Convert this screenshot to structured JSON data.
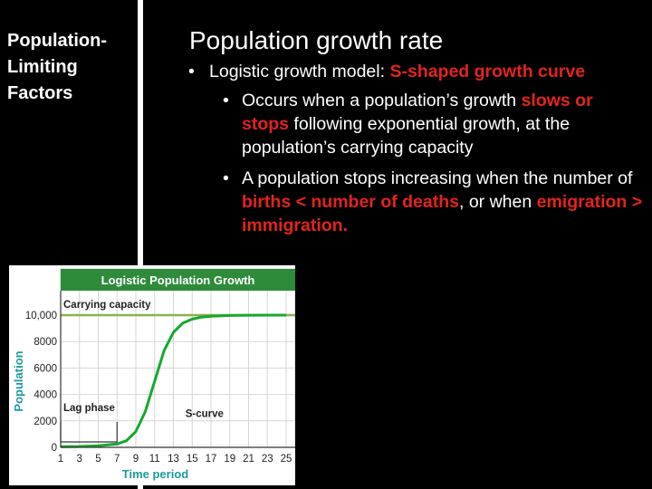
{
  "sidebar": {
    "title_lines": [
      "Population-",
      "Limiting",
      "Factors"
    ]
  },
  "main": {
    "title": "Population growth rate",
    "bullet1": {
      "bullet": "•",
      "prefix": "Logistic growth model: ",
      "highlight": "S-shaped growth curve"
    },
    "bullet2": {
      "bullet": "•",
      "prefix": "Occurs when a population’s growth ",
      "highlight": "slows or stops",
      "suffix": " following exponential growth, at the population’s carrying capacity"
    },
    "bullet3": {
      "bullet": "•",
      "prefix": "A population stops increasing when the number of ",
      "highlight1": "births < number of deaths",
      "middle": ", or when ",
      "highlight2": "emigration > immigration."
    }
  },
  "colors": {
    "highlight": "#e2241d",
    "header_green": "#2e8b3a",
    "capacity_line": "#8ab04a",
    "curve": "#16a82d",
    "axis_label": "#1a9b9e"
  },
  "chart_data": {
    "type": "line",
    "title": "Logistic Population Growth",
    "xlabel": "Time period",
    "ylabel": "Population",
    "xlim": [
      1,
      25
    ],
    "ylim": [
      0,
      10000
    ],
    "x_ticks": [
      "1",
      "3",
      "5",
      "7",
      "9",
      "11",
      "13",
      "15",
      "17",
      "19",
      "21",
      "23",
      "25"
    ],
    "y_ticks": [
      "0",
      "2000",
      "4000",
      "6000",
      "8000",
      "10,000"
    ],
    "grid": true,
    "carrying_capacity": 10000,
    "annotations": {
      "capacity": "Carrying capacity",
      "s_curve": "S-curve",
      "lag": "Lag phase"
    },
    "lag_phase_range": [
      1,
      7
    ],
    "series": [
      {
        "x": [
          1,
          3,
          5,
          7,
          8,
          9,
          10,
          11,
          12,
          13,
          14,
          15,
          16,
          17,
          19,
          21,
          23,
          25
        ],
        "y": [
          50,
          70,
          120,
          250,
          500,
          1200,
          2700,
          5000,
          7300,
          8700,
          9400,
          9700,
          9850,
          9920,
          9970,
          9990,
          10000,
          10000
        ]
      }
    ]
  }
}
